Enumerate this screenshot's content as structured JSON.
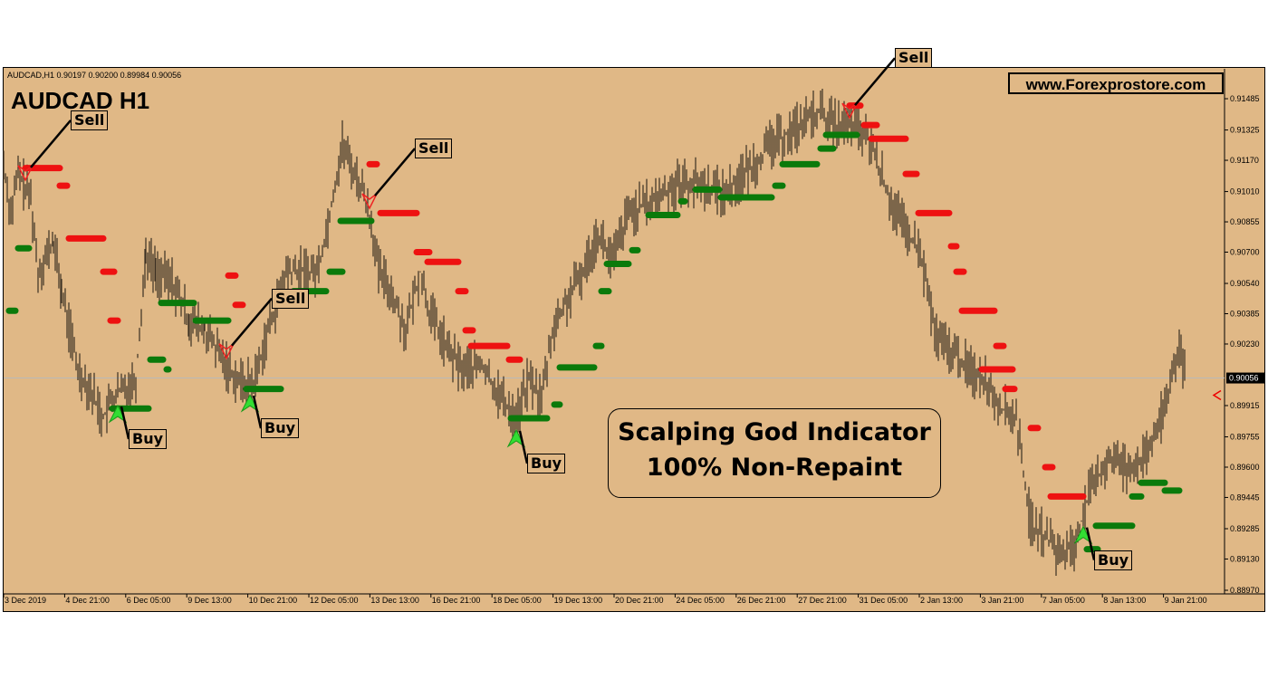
{
  "header": {
    "symbol_line": "AUDCAD,H1  0.90197 0.90200 0.89984 0.90056"
  },
  "title": "AUDCAD H1",
  "website": "www.Forexprostore.com",
  "promo": {
    "line1": "Scalping God Indicator",
    "line2": "100% Non-Repaint"
  },
  "colors": {
    "background": "#e0b886",
    "candles": "#3b3023",
    "buy": "#0b7a0b",
    "sell": "#ee1111",
    "buy_arrow": "#33dd33",
    "sell_arrow": "#ee2222",
    "price_line": "#b9b9b9"
  },
  "chart_data": {
    "type": "line",
    "symbol": "AUDCAD",
    "timeframe": "H1",
    "ylim": [
      0.8897,
      0.9155
    ],
    "y_ticks": [
      "0.91485",
      "0.91325",
      "0.91170",
      "0.91010",
      "0.90855",
      "0.90700",
      "0.90540",
      "0.90385",
      "0.90230",
      "0.89915",
      "0.89755",
      "0.89600",
      "0.89445",
      "0.89285",
      "0.89130",
      "0.88970"
    ],
    "current_price": "0.90056",
    "x_ticks": [
      "3 Dec 2019",
      "4 Dec 21:00",
      "6 Dec 05:00",
      "9 Dec 13:00",
      "10 Dec 21:00",
      "12 Dec 05:00",
      "13 Dec 13:00",
      "16 Dec 21:00",
      "18 Dec 05:00",
      "19 Dec 13:00",
      "20 Dec 21:00",
      "24 Dec 05:00",
      "26 Dec 21:00",
      "27 Dec 21:00",
      "31 Dec 05:00",
      "2 Jan 13:00",
      "3 Jan 21:00",
      "7 Jan 05:00",
      "8 Jan 13:00",
      "9 Jan 21:00"
    ],
    "price_path": [
      [
        0,
        0.9115
      ],
      [
        8,
        0.909
      ],
      [
        16,
        0.911
      ],
      [
        30,
        0.9098
      ],
      [
        38,
        0.906
      ],
      [
        55,
        0.9075
      ],
      [
        64,
        0.905
      ],
      [
        82,
        0.901
      ],
      [
        96,
        0.9
      ],
      [
        110,
        0.8985
      ],
      [
        120,
        0.8995
      ],
      [
        132,
        0.9
      ],
      [
        146,
        0.9005
      ],
      [
        157,
        0.907
      ],
      [
        168,
        0.906
      ],
      [
        186,
        0.9055
      ],
      [
        205,
        0.9035
      ],
      [
        222,
        0.903
      ],
      [
        246,
        0.9012
      ],
      [
        262,
        0.9003
      ],
      [
        276,
        0.9003
      ],
      [
        292,
        0.903
      ],
      [
        312,
        0.906
      ],
      [
        322,
        0.906
      ],
      [
        346,
        0.906
      ],
      [
        356,
        0.908
      ],
      [
        364,
        0.91
      ],
      [
        374,
        0.9125
      ],
      [
        386,
        0.9112
      ],
      [
        398,
        0.91
      ],
      [
        406,
        0.9085
      ],
      [
        414,
        0.906
      ],
      [
        428,
        0.905
      ],
      [
        444,
        0.903
      ],
      [
        460,
        0.906
      ],
      [
        470,
        0.904
      ],
      [
        490,
        0.902
      ],
      [
        506,
        0.901
      ],
      [
        528,
        0.9012
      ],
      [
        550,
        0.8995
      ],
      [
        566,
        0.8985
      ],
      [
        580,
        0.9005
      ],
      [
        594,
        0.8995
      ],
      [
        606,
        0.903
      ],
      [
        622,
        0.9045
      ],
      [
        640,
        0.906
      ],
      [
        656,
        0.908
      ],
      [
        672,
        0.9065
      ],
      [
        690,
        0.909
      ],
      [
        714,
        0.9095
      ],
      [
        742,
        0.9105
      ],
      [
        768,
        0.9105
      ],
      [
        796,
        0.91
      ],
      [
        818,
        0.911
      ],
      [
        848,
        0.9125
      ],
      [
        870,
        0.9132
      ],
      [
        900,
        0.9142
      ],
      [
        918,
        0.9135
      ],
      [
        940,
        0.9135
      ],
      [
        958,
        0.9125
      ],
      [
        976,
        0.91
      ],
      [
        996,
        0.908
      ],
      [
        1012,
        0.907
      ],
      [
        1030,
        0.9025
      ],
      [
        1046,
        0.902
      ],
      [
        1066,
        0.901
      ],
      [
        1084,
        0.9005
      ],
      [
        1102,
        0.899
      ],
      [
        1118,
        0.8985
      ],
      [
        1134,
        0.893
      ],
      [
        1150,
        0.8925
      ],
      [
        1166,
        0.8915
      ],
      [
        1182,
        0.892
      ],
      [
        1198,
        0.8945
      ],
      [
        1220,
        0.8965
      ],
      [
        1240,
        0.896
      ],
      [
        1262,
        0.8965
      ],
      [
        1282,
        0.899
      ],
      [
        1296,
        0.902
      ],
      [
        1306,
        0.9005
      ]
    ],
    "buy_levels": [
      [
        6,
        13,
        0.904
      ],
      [
        16,
        28,
        0.9072
      ],
      [
        120,
        160,
        0.899
      ],
      [
        162,
        176,
        0.9015
      ],
      [
        180,
        182,
        0.901
      ],
      [
        174,
        210,
        0.9044
      ],
      [
        212,
        248,
        0.9035
      ],
      [
        268,
        306,
        0.9
      ],
      [
        320,
        356,
        0.905
      ],
      [
        360,
        374,
        0.906
      ],
      [
        372,
        406,
        0.9086
      ],
      [
        560,
        600,
        0.8985
      ],
      [
        608,
        614,
        0.8992
      ],
      [
        614,
        652,
        0.9011
      ],
      [
        654,
        660,
        0.9022
      ],
      [
        660,
        668,
        0.905
      ],
      [
        666,
        690,
        0.9064
      ],
      [
        694,
        700,
        0.9071
      ],
      [
        712,
        744,
        0.9089
      ],
      [
        748,
        752,
        0.9096
      ],
      [
        764,
        790,
        0.9102
      ],
      [
        792,
        848,
        0.9098
      ],
      [
        852,
        860,
        0.9104
      ],
      [
        860,
        898,
        0.9115
      ],
      [
        902,
        916,
        0.9123
      ],
      [
        908,
        942,
        0.913
      ],
      [
        1196,
        1208,
        0.8918
      ],
      [
        1206,
        1246,
        0.893
      ],
      [
        1246,
        1256,
        0.8945
      ],
      [
        1256,
        1282,
        0.8952
      ],
      [
        1282,
        1298,
        0.8948
      ]
    ],
    "sell_levels": [
      [
        24,
        62,
        0.9113
      ],
      [
        62,
        70,
        0.9104
      ],
      [
        72,
        110,
        0.9077
      ],
      [
        110,
        122,
        0.906
      ],
      [
        118,
        126,
        0.9035
      ],
      [
        248,
        256,
        0.9058
      ],
      [
        256,
        264,
        0.9043
      ],
      [
        404,
        412,
        0.9115
      ],
      [
        416,
        456,
        0.909
      ],
      [
        456,
        470,
        0.907
      ],
      [
        468,
        502,
        0.9065
      ],
      [
        502,
        510,
        0.905
      ],
      [
        510,
        518,
        0.903
      ],
      [
        516,
        556,
        0.9022
      ],
      [
        558,
        570,
        0.9015
      ],
      [
        934,
        946,
        0.9145
      ],
      [
        950,
        964,
        0.9135
      ],
      [
        958,
        996,
        0.9128
      ],
      [
        996,
        1008,
        0.911
      ],
      [
        1010,
        1044,
        0.909
      ],
      [
        1046,
        1052,
        0.9073
      ],
      [
        1052,
        1060,
        0.906
      ],
      [
        1058,
        1094,
        0.904
      ],
      [
        1096,
        1104,
        0.9022
      ],
      [
        1106,
        1116,
        0.9
      ],
      [
        1080,
        1114,
        0.901
      ],
      [
        1134,
        1142,
        0.898
      ],
      [
        1150,
        1158,
        0.896
      ],
      [
        1156,
        1192,
        0.8945
      ]
    ],
    "signals": [
      {
        "type": "sell",
        "x": 24,
        "label": "Sell"
      },
      {
        "type": "buy",
        "x": 126,
        "label": "Buy"
      },
      {
        "type": "sell",
        "x": 246,
        "label": "Sell"
      },
      {
        "type": "buy",
        "x": 272,
        "label": "Buy"
      },
      {
        "type": "sell",
        "x": 404,
        "label": "Sell"
      },
      {
        "type": "buy",
        "x": 566,
        "label": "Buy"
      },
      {
        "type": "sell",
        "x": 934,
        "label": "Sell"
      },
      {
        "type": "buy",
        "x": 1192,
        "label": "Buy"
      }
    ]
  }
}
